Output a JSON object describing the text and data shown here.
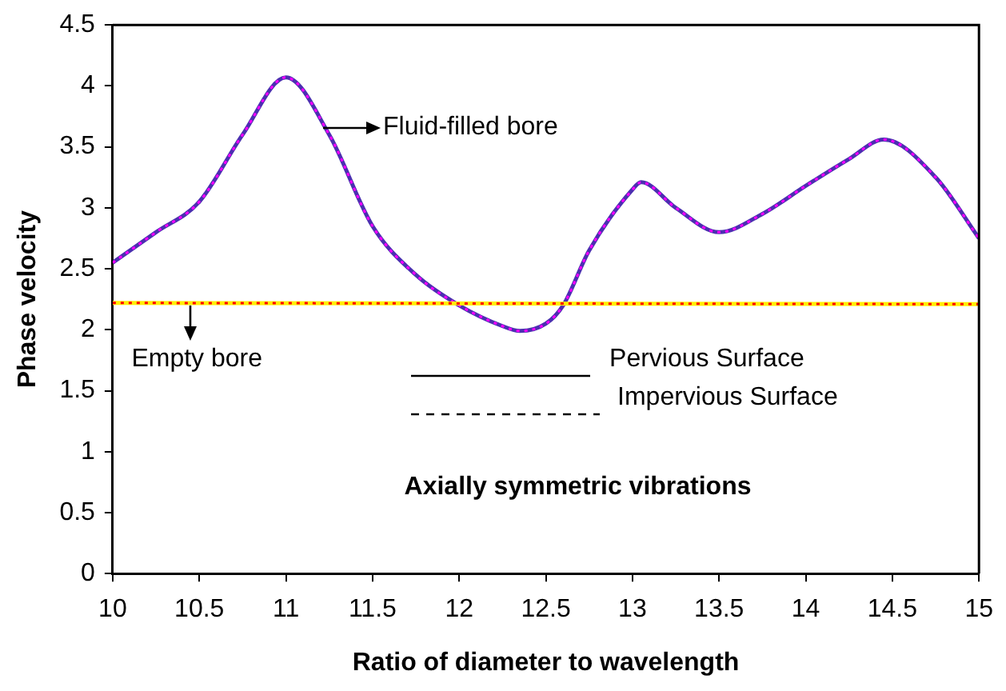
{
  "chart_data": {
    "type": "line",
    "xlabel": "Ratio of diameter to wavelength",
    "ylabel": "Phase velocity",
    "xlim": [
      10,
      15
    ],
    "xticks": [
      10,
      10.5,
      11,
      11.5,
      12,
      12.5,
      13,
      13.5,
      14,
      14.5,
      15
    ],
    "ylim": [
      0,
      4.5
    ],
    "yticks": [
      0,
      0.5,
      1,
      1.5,
      2,
      2.5,
      3,
      3.5,
      4,
      4.5
    ],
    "grid": false,
    "legend": false,
    "marker": "none",
    "series": [
      {
        "color": "#4b2fb0",
        "line_style": "solid",
        "x": [
          10,
          10.25,
          10.5,
          10.75,
          11.0,
          11.25,
          11.5,
          11.75,
          12.0,
          12.25,
          12.35,
          12.5,
          12.6,
          12.75,
          13.0,
          13.05,
          13.25,
          13.5,
          13.75,
          14.0,
          14.25,
          14.45,
          14.75,
          15
        ],
        "values": [
          2.55,
          2.8,
          3.05,
          3.6,
          4.07,
          3.6,
          2.85,
          2.45,
          2.2,
          2.03,
          1.99,
          2.05,
          2.2,
          2.65,
          3.15,
          3.21,
          3.0,
          2.8,
          2.95,
          3.18,
          3.4,
          3.56,
          3.25,
          2.75
        ]
      },
      {
        "color": "#ff00ff",
        "line_style": "dotted",
        "x": [
          10,
          10.25,
          10.5,
          10.75,
          11.0,
          11.25,
          11.5,
          11.75,
          12.0,
          12.25,
          12.35,
          12.5,
          12.6,
          12.75,
          13.0,
          13.05,
          13.25,
          13.5,
          13.75,
          14.0,
          14.25,
          14.45,
          14.75,
          15
        ],
        "values": [
          2.55,
          2.8,
          3.05,
          3.6,
          4.07,
          3.6,
          2.85,
          2.45,
          2.2,
          2.03,
          1.99,
          2.05,
          2.2,
          2.65,
          3.15,
          3.21,
          3.0,
          2.8,
          2.95,
          3.18,
          3.4,
          3.56,
          3.25,
          2.75
        ]
      },
      {
        "color": "#ffee00",
        "line_style": "solid",
        "x": [
          10,
          15
        ],
        "values": [
          2.22,
          2.21
        ]
      },
      {
        "color": "#ff0000",
        "line_style": "dotted",
        "x": [
          10,
          15
        ],
        "values": [
          2.22,
          2.21
        ]
      }
    ],
    "annotations": [
      {
        "text": "Fluid-filled bore",
        "x": 11.21,
        "y": 3.66
      },
      {
        "text": "Empty bore",
        "x": 10.45,
        "y": 2.22
      },
      "Pervious Surface",
      "Impervious Surface",
      "Axially symmetric vibrations"
    ]
  }
}
